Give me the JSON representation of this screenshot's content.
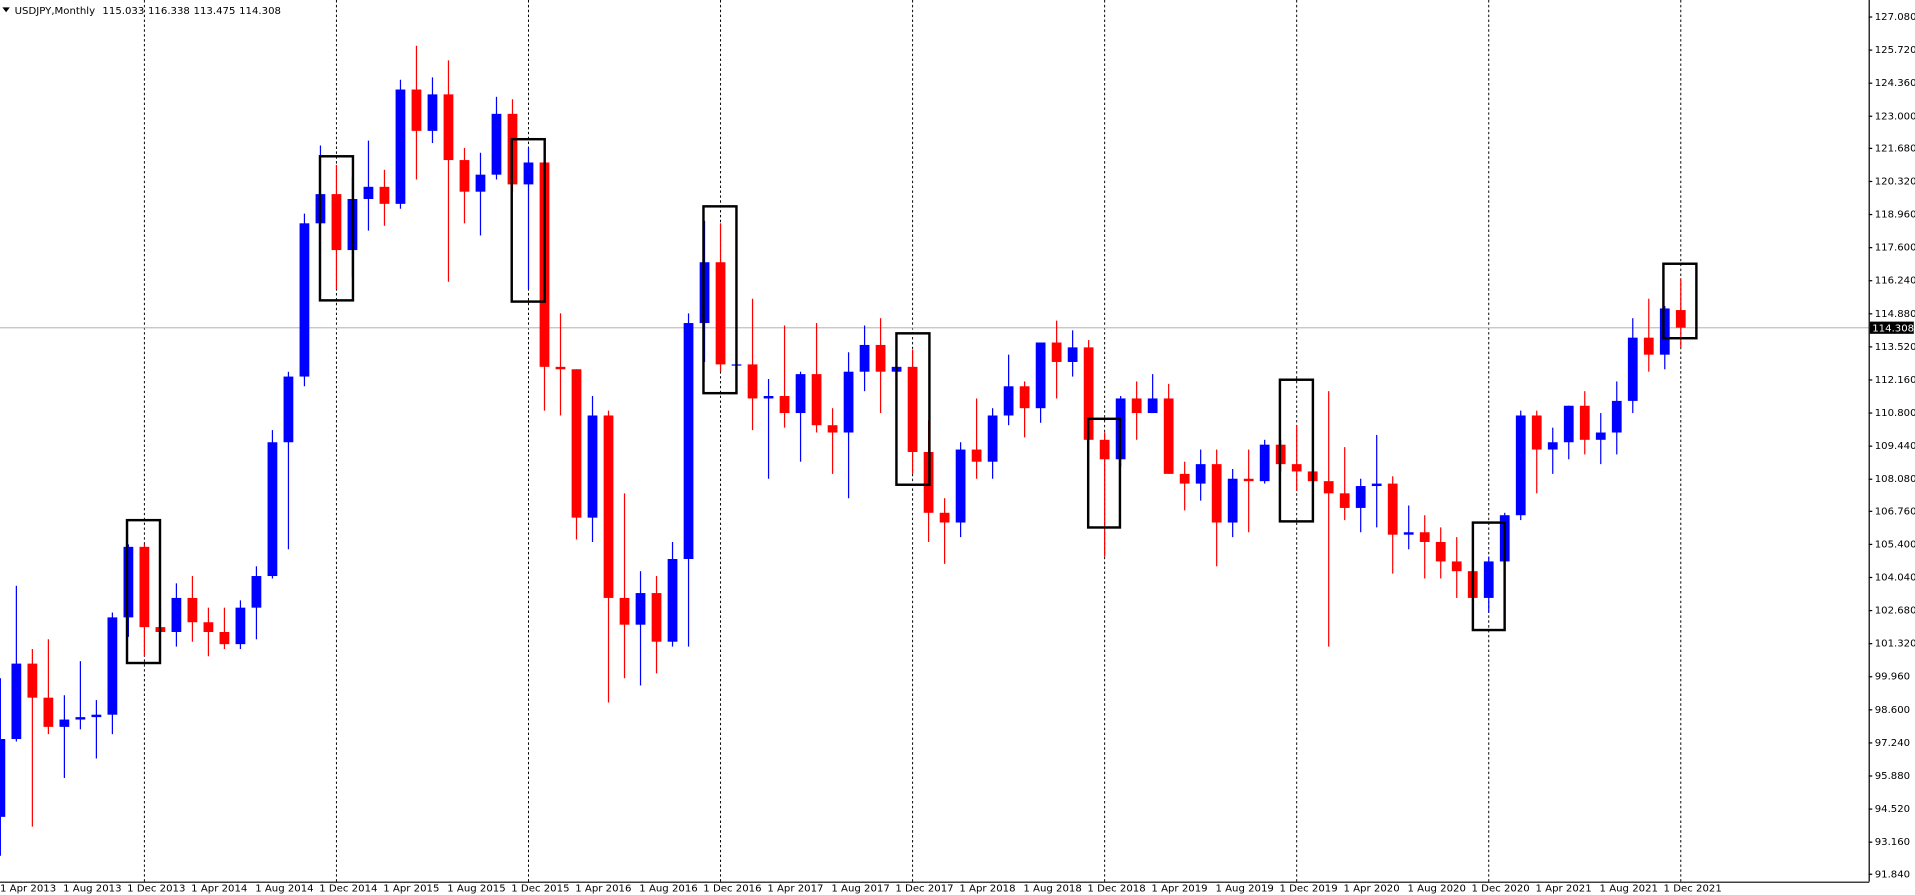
{
  "chart_data": {
    "type": "candlestick",
    "symbol": "USDJPY,Monthly",
    "up_color": "#0000ff",
    "down_color": "#ff0000",
    "categories": [
      "1 Apr 2013",
      null,
      null,
      null,
      "1 Aug 2013",
      null,
      null,
      null,
      "1 Dec 2013",
      null,
      null,
      null,
      "1 Apr 2014",
      null,
      null,
      null,
      "1 Aug 2014",
      null,
      null,
      null,
      "1 Dec 2014",
      null,
      null,
      null,
      "1 Apr 2015",
      null,
      null,
      null,
      "1 Aug 2015",
      null,
      null,
      null,
      "1 Dec 2015",
      null,
      null,
      null,
      "1 Apr 2016",
      null,
      null,
      null,
      "1 Aug 2016",
      null,
      null,
      null,
      "1 Dec 2016",
      null,
      null,
      null,
      "1 Apr 2017",
      null,
      null,
      null,
      "1 Aug 2017",
      null,
      null,
      null,
      "1 Dec 2017",
      null,
      null,
      null,
      "1 Apr 2018",
      null,
      null,
      null,
      "1 Aug 2018",
      null,
      null,
      null,
      "1 Dec 2018",
      null,
      null,
      null,
      "1 Apr 2019",
      null,
      null,
      null,
      "1 Aug 2019",
      null,
      null,
      null,
      "1 Dec 2019",
      null,
      null,
      null,
      "1 Apr 2020",
      null,
      null,
      null,
      "1 Aug 2020",
      null,
      null,
      null,
      "1 Dec 2020",
      null,
      null,
      null,
      "1 Apr 2021",
      null,
      null,
      null,
      "1 Aug 2021",
      null,
      null,
      null,
      "1 Dec 2021",
      null
    ],
    "open": [
      94.2,
      97.4,
      100.5,
      99.1,
      97.9,
      98.2,
      98.3,
      98.4,
      102.4,
      105.3,
      102.0,
      101.8,
      103.2,
      102.2,
      101.8,
      101.3,
      102.8,
      104.1,
      109.6,
      112.3,
      118.6,
      119.8,
      117.5,
      119.6,
      120.1,
      119.4,
      124.1,
      122.4,
      123.9,
      121.2,
      119.9,
      120.6,
      123.1,
      120.2,
      121.1,
      112.7,
      112.6,
      106.5,
      110.7,
      103.2,
      102.1,
      103.4,
      101.4,
      104.8,
      114.5,
      117.0,
      112.8,
      112.8,
      111.4,
      111.5,
      110.8,
      112.4,
      110.3,
      110.0,
      112.5,
      113.6,
      112.5,
      112.7,
      109.2,
      106.7,
      106.3,
      109.3,
      108.8,
      110.7,
      111.9,
      111.0,
      113.7,
      112.9,
      113.5,
      109.7,
      108.9,
      111.4,
      110.8,
      111.4,
      108.3,
      107.9,
      108.7,
      106.3,
      108.1,
      108.0,
      109.5,
      108.7,
      108.4,
      108.0,
      107.5,
      106.9,
      107.8,
      107.9,
      105.8,
      105.9,
      105.5,
      104.7,
      104.3,
      103.2,
      104.7,
      106.6,
      110.7,
      109.3,
      109.6,
      111.1,
      109.7,
      110.0,
      111.3,
      113.9,
      113.2,
      115.033
    ],
    "high": [
      99.9,
      103.7,
      101.1,
      101.5,
      99.2,
      100.6,
      99.0,
      102.6,
      105.4,
      105.4,
      102.8,
      103.8,
      104.1,
      102.8,
      102.8,
      103.1,
      104.5,
      110.1,
      112.5,
      119.0,
      121.8,
      121.0,
      120.5,
      122.0,
      120.8,
      124.5,
      125.9,
      124.6,
      125.3,
      121.7,
      121.5,
      123.8,
      123.7,
      121.7,
      121.5,
      114.9,
      112.6,
      111.5,
      110.9,
      107.5,
      104.3,
      104.1,
      105.5,
      114.9,
      118.7,
      118.6,
      115.6,
      115.5,
      112.2,
      114.4,
      112.5,
      114.5,
      111.0,
      113.3,
      114.4,
      114.7,
      113.8,
      113.4,
      110.5,
      107.3,
      109.6,
      111.4,
      111.0,
      113.2,
      112.1,
      113.7,
      114.6,
      114.2,
      113.8,
      110.0,
      111.5,
      112.1,
      112.4,
      112.0,
      108.8,
      109.3,
      109.3,
      108.5,
      109.3,
      109.7,
      109.7,
      110.3,
      112.2,
      111.7,
      109.4,
      108.1,
      109.9,
      108.2,
      107.0,
      106.6,
      106.1,
      105.7,
      104.8,
      104.9,
      106.7,
      110.9,
      110.9,
      110.2,
      111.1,
      111.7,
      110.8,
      112.1,
      114.7,
      115.5,
      115.2,
      116.338
    ],
    "low": [
      92.6,
      97.3,
      93.8,
      97.6,
      95.8,
      97.8,
      96.6,
      97.6,
      101.6,
      100.8,
      100.8,
      101.2,
      101.4,
      100.8,
      101.1,
      101.1,
      101.5,
      104.0,
      105.2,
      111.9,
      115.6,
      115.9,
      116.4,
      118.3,
      118.5,
      119.2,
      120.4,
      121.9,
      116.2,
      118.6,
      118.1,
      120.4,
      119.9,
      115.9,
      110.9,
      110.7,
      105.6,
      105.5,
      98.9,
      99.9,
      99.6,
      100.1,
      101.2,
      101.2,
      112.9,
      112.5,
      111.6,
      110.1,
      108.1,
      110.2,
      108.8,
      110.0,
      108.3,
      107.3,
      111.7,
      110.8,
      111.9,
      108.3,
      105.5,
      104.6,
      105.7,
      108.1,
      108.1,
      110.3,
      109.8,
      110.4,
      111.4,
      112.3,
      109.6,
      104.9,
      108.6,
      109.7,
      110.8,
      108.3,
      106.8,
      107.2,
      104.5,
      105.7,
      105.9,
      107.9,
      108.4,
      107.6,
      107.0,
      101.2,
      106.4,
      105.9,
      106.1,
      104.2,
      105.2,
      104.0,
      104.0,
      103.2,
      102.9,
      102.6,
      104.4,
      106.4,
      107.5,
      108.3,
      108.9,
      109.1,
      108.7,
      109.1,
      110.8,
      112.5,
      112.6,
      113.475
    ],
    "close": [
      97.4,
      100.5,
      99.1,
      97.9,
      98.2,
      98.3,
      98.4,
      102.4,
      105.3,
      102.0,
      101.8,
      103.2,
      102.2,
      101.8,
      101.3,
      102.8,
      104.1,
      109.6,
      112.3,
      118.6,
      119.8,
      117.5,
      119.6,
      120.1,
      119.4,
      124.1,
      122.4,
      123.9,
      121.2,
      119.9,
      120.6,
      123.1,
      120.2,
      121.1,
      112.7,
      112.6,
      106.5,
      110.7,
      103.2,
      102.1,
      103.4,
      101.4,
      104.8,
      114.5,
      117.0,
      112.8,
      112.8,
      111.4,
      111.5,
      110.8,
      112.4,
      110.3,
      110.0,
      112.5,
      113.6,
      112.5,
      112.7,
      109.2,
      106.7,
      106.3,
      109.3,
      108.8,
      110.7,
      111.9,
      111.0,
      113.7,
      112.9,
      113.5,
      109.7,
      108.9,
      111.4,
      110.8,
      111.4,
      108.3,
      107.9,
      108.7,
      106.3,
      108.1,
      108.0,
      109.5,
      108.7,
      108.4,
      108.0,
      107.5,
      106.9,
      107.8,
      107.9,
      105.8,
      105.9,
      105.5,
      104.7,
      104.3,
      103.2,
      104.7,
      106.6,
      110.7,
      109.3,
      109.6,
      111.1,
      109.7,
      110.0,
      111.3,
      113.9,
      113.2,
      115.1,
      114.308
    ],
    "ylim": [
      91.54,
      127.78
    ],
    "yticks": [
      {
        "value": 127.08,
        "label": "127.080"
      },
      {
        "value": 125.72,
        "label": "125.720"
      },
      {
        "value": 124.36,
        "label": "124.360"
      },
      {
        "value": 123.0,
        "label": "123.000"
      },
      {
        "value": 121.68,
        "label": "121.680"
      },
      {
        "value": 120.32,
        "label": "120.320"
      },
      {
        "value": 118.96,
        "label": "118.960"
      },
      {
        "value": 117.6,
        "label": "117.600"
      },
      {
        "value": 116.24,
        "label": "116.240"
      },
      {
        "value": 114.88,
        "label": "114.880"
      },
      {
        "value": 113.52,
        "label": "113.520"
      },
      {
        "value": 112.16,
        "label": "112.160"
      },
      {
        "value": 110.8,
        "label": "110.800"
      },
      {
        "value": 109.44,
        "label": "109.440"
      },
      {
        "value": 108.08,
        "label": "108.080"
      },
      {
        "value": 106.76,
        "label": "106.760"
      },
      {
        "value": 105.4,
        "label": "105.400"
      },
      {
        "value": 104.04,
        "label": "104.040"
      },
      {
        "value": 102.68,
        "label": "102.680"
      },
      {
        "value": 101.32,
        "label": "101.320"
      },
      {
        "value": 99.96,
        "label": "99.960"
      },
      {
        "value": 98.6,
        "label": "98.600"
      },
      {
        "value": 97.24,
        "label": "97.240"
      },
      {
        "value": 95.88,
        "label": "95.880"
      },
      {
        "value": 94.52,
        "label": "94.520"
      },
      {
        "value": 93.16,
        "label": "93.160"
      },
      {
        "value": 91.84,
        "label": "91.840"
      }
    ]
  }
}
